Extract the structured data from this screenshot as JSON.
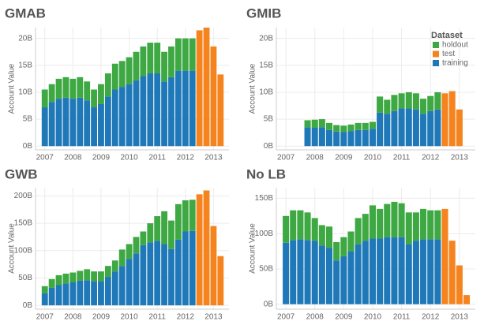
{
  "chart_data": [
    {
      "type": "bar",
      "title": "GMAB",
      "ylabel": "Account Value",
      "x": [
        2007,
        2007.25,
        2007.5,
        2007.75,
        2008,
        2008.25,
        2008.5,
        2008.75,
        2009,
        2009.25,
        2009.5,
        2009.75,
        2010,
        2010.25,
        2010.5,
        2010.75,
        2011,
        2011.25,
        2011.5,
        2011.75,
        2012,
        2012.25,
        2012.5,
        2012.75,
        2013,
        2013.25
      ],
      "xlim": [
        2006.67,
        2013.55
      ],
      "xticks": [
        2007,
        2008,
        2009,
        2010,
        2011,
        2012,
        2013
      ],
      "ylim": [
        -0.7,
        22
      ],
      "yticks": [
        {
          "value": 0,
          "label": "0B"
        },
        {
          "value": 5,
          "label": "5B"
        },
        {
          "value": 10,
          "label": "10B"
        },
        {
          "value": 15,
          "label": "15B"
        },
        {
          "value": 20,
          "label": "20B"
        }
      ],
      "grid": true,
      "series": [
        {
          "color": "#3ea843",
          "values": [
            3.3,
            3.3,
            3.7,
            3.8,
            3.7,
            3.8,
            3.5,
            3.3,
            3.7,
            4.3,
            4.8,
            4.8,
            5.0,
            5.3,
            5.5,
            5.7,
            5.7,
            5.5,
            5.7,
            6.0,
            6.0,
            6.0,
            null,
            null,
            null,
            null
          ]
        },
        {
          "color": "#f5841f",
          "values": [
            null,
            null,
            null,
            null,
            null,
            null,
            null,
            null,
            null,
            null,
            null,
            null,
            null,
            null,
            null,
            null,
            null,
            null,
            null,
            null,
            null,
            null,
            21.5,
            22,
            18.5,
            13.3
          ]
        },
        {
          "color": "#1f78b8",
          "values": [
            7.2,
            8.2,
            8.8,
            9.0,
            8.8,
            9.0,
            8.5,
            7.2,
            7.8,
            9.2,
            10.5,
            11.0,
            11.5,
            12.2,
            13.0,
            13.5,
            13.5,
            12.0,
            12.8,
            14.0,
            14.0,
            14.0,
            null,
            null,
            null,
            null
          ]
        }
      ]
    },
    {
      "type": "bar",
      "title": "GMIB",
      "ylabel": "Account Value",
      "x": [
        2007,
        2007.25,
        2007.5,
        2007.75,
        2008,
        2008.25,
        2008.5,
        2008.75,
        2009,
        2009.25,
        2009.5,
        2009.75,
        2010,
        2010.25,
        2010.5,
        2010.75,
        2011,
        2011.25,
        2011.5,
        2011.75,
        2012,
        2012.25,
        2012.5,
        2012.75,
        2013,
        2013.25
      ],
      "xlim": [
        2006.67,
        2013.55
      ],
      "xticks": [
        2007,
        2008,
        2009,
        2010,
        2011,
        2012,
        2013
      ],
      "ylim": [
        -0.7,
        22
      ],
      "yticks": [
        {
          "value": 0,
          "label": "0B"
        },
        {
          "value": 5,
          "label": "5B"
        },
        {
          "value": 10,
          "label": "10B"
        },
        {
          "value": 15,
          "label": "15B"
        },
        {
          "value": 20,
          "label": "20B"
        }
      ],
      "grid": true,
      "legend": "upper right",
      "legend_title": "Dataset",
      "series": [
        {
          "name": "holdout",
          "color": "#3ea843",
          "values": [
            null,
            null,
            null,
            1.3,
            1.5,
            1.5,
            1.3,
            1.2,
            1.2,
            1.2,
            1.3,
            1.3,
            1.3,
            3.0,
            2.6,
            3.0,
            2.8,
            3.0,
            3.0,
            2.8,
            2.8,
            3.2,
            null,
            null,
            null,
            null
          ]
        },
        {
          "name": "test",
          "color": "#f5841f",
          "values": [
            null,
            null,
            null,
            null,
            null,
            null,
            null,
            null,
            null,
            null,
            null,
            null,
            null,
            null,
            null,
            null,
            null,
            null,
            null,
            null,
            null,
            null,
            9.8,
            10.2,
            6.8,
            null
          ]
        },
        {
          "name": "training",
          "color": "#1f78b8",
          "values": [
            null,
            null,
            null,
            3.5,
            3.4,
            3.5,
            3.0,
            2.7,
            2.6,
            2.8,
            3.0,
            3.0,
            3.2,
            6.2,
            6.0,
            6.5,
            7.0,
            7.0,
            6.8,
            6.0,
            6.5,
            6.8,
            null,
            null,
            null,
            null
          ]
        }
      ]
    },
    {
      "type": "bar",
      "title": "GWB",
      "ylabel": "Account Value",
      "x": [
        2007,
        2007.25,
        2007.5,
        2007.75,
        2008,
        2008.25,
        2008.5,
        2008.75,
        2009,
        2009.25,
        2009.5,
        2009.75,
        2010,
        2010.25,
        2010.5,
        2010.75,
        2011,
        2011.25,
        2011.5,
        2011.75,
        2012,
        2012.25,
        2012.5,
        2012.75,
        2013,
        2013.25
      ],
      "xlim": [
        2006.67,
        2013.55
      ],
      "xticks": [
        2007,
        2008,
        2009,
        2010,
        2011,
        2012,
        2013
      ],
      "ylim": [
        -7,
        215
      ],
      "yticks": [
        {
          "value": 0,
          "label": "0B"
        },
        {
          "value": 50,
          "label": "50B"
        },
        {
          "value": 100,
          "label": "100B"
        },
        {
          "value": 150,
          "label": "150B"
        },
        {
          "value": 200,
          "label": "200B"
        }
      ],
      "grid": true,
      "series": [
        {
          "color": "#3ea843",
          "values": [
            13,
            16,
            18,
            18,
            18,
            18,
            20,
            18,
            18,
            20,
            20,
            30,
            27,
            30,
            25,
            35,
            45,
            60,
            52,
            65,
            57,
            57,
            null,
            null,
            null,
            null
          ]
        },
        {
          "color": "#f5841f",
          "values": [
            null,
            null,
            null,
            null,
            null,
            null,
            null,
            null,
            null,
            null,
            null,
            null,
            null,
            null,
            null,
            null,
            null,
            null,
            null,
            null,
            null,
            null,
            203,
            210,
            145,
            90
          ]
        },
        {
          "color": "#1f78b8",
          "values": [
            22,
            32,
            37,
            40,
            42,
            45,
            46,
            44,
            44,
            52,
            62,
            72,
            85,
            95,
            110,
            115,
            118,
            112,
            103,
            120,
            135,
            136,
            null,
            null,
            null,
            null
          ]
        }
      ]
    },
    {
      "type": "bar",
      "title": "No LB",
      "ylabel": "Account Value",
      "x": [
        2007,
        2007.25,
        2007.5,
        2007.75,
        2008,
        2008.25,
        2008.5,
        2008.75,
        2009,
        2009.25,
        2009.5,
        2009.75,
        2010,
        2010.25,
        2010.5,
        2010.75,
        2011,
        2011.25,
        2011.5,
        2011.75,
        2012,
        2012.25,
        2012.5,
        2012.75,
        2013,
        2013.25
      ],
      "xlim": [
        2006.67,
        2013.55
      ],
      "xticks": [
        2007,
        2008,
        2009,
        2010,
        2011,
        2012,
        2013
      ],
      "ylim": [
        -7,
        165
      ],
      "yticks": [
        {
          "value": 0,
          "label": "0B"
        },
        {
          "value": 50,
          "label": "50B"
        },
        {
          "value": 100,
          "label": "100B"
        },
        {
          "value": 150,
          "label": "150B"
        }
      ],
      "grid": true,
      "series": [
        {
          "color": "#3ea843",
          "values": [
            38,
            42,
            41,
            39,
            32,
            29,
            30,
            26,
            27,
            28,
            37,
            38,
            47,
            42,
            47,
            50,
            48,
            45,
            40,
            43,
            41,
            41,
            null,
            null,
            null,
            null
          ]
        },
        {
          "color": "#f5841f",
          "values": [
            null,
            null,
            null,
            null,
            null,
            null,
            null,
            null,
            null,
            null,
            null,
            null,
            null,
            null,
            null,
            null,
            null,
            null,
            null,
            null,
            null,
            null,
            135,
            90,
            55,
            13
          ]
        },
        {
          "color": "#1f78b8",
          "values": [
            87,
            91,
            92,
            91,
            90,
            83,
            80,
            62,
            68,
            75,
            85,
            90,
            93,
            93,
            95,
            95,
            95,
            85,
            90,
            92,
            92,
            92,
            null,
            null,
            null,
            null
          ]
        }
      ]
    }
  ]
}
